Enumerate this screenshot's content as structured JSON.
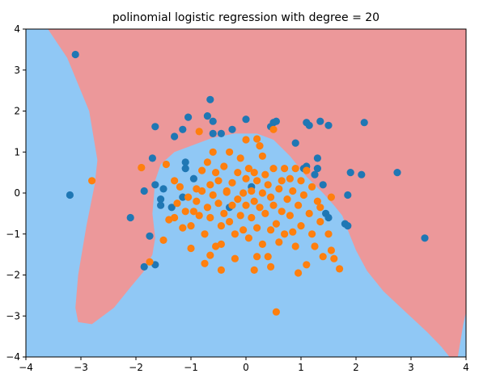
{
  "chart_data": {
    "type": "scatter",
    "title": "polinomial logistic regression with degree = 20",
    "xlabel": "",
    "ylabel": "",
    "xlim": [
      -4,
      4
    ],
    "ylim": [
      -4,
      4
    ],
    "xticks": [
      "−4",
      "−3",
      "−2",
      "−1",
      "0",
      "1",
      "2",
      "3",
      "4"
    ],
    "yticks": [
      "−4",
      "−3",
      "−2",
      "−1",
      "0",
      "1",
      "2",
      "3",
      "4"
    ],
    "grid": false,
    "legend": "none",
    "colors": {
      "class_0_region": "#ec989a",
      "class_1_region": "#90c8f5",
      "class_0_points": "#1f77b4",
      "class_1_points": "#ff7f0e"
    },
    "regions": {
      "class_1_left": [
        [
          -4,
          4
        ],
        [
          -3.6,
          4
        ],
        [
          -3.25,
          3.3
        ],
        [
          -2.85,
          2.0
        ],
        [
          -2.7,
          0.8
        ],
        [
          -2.75,
          0.2
        ],
        [
          -2.9,
          -0.8
        ],
        [
          -3.05,
          -2.0
        ],
        [
          -3.1,
          -2.8
        ],
        [
          -3.05,
          -3.15
        ],
        [
          -2.8,
          -3.2
        ],
        [
          -2.4,
          -2.8
        ],
        [
          -2.1,
          -2.3
        ],
        [
          -1.85,
          -1.9
        ],
        [
          -1.7,
          -1.5
        ],
        [
          -1.65,
          -1.1
        ],
        [
          -1.7,
          -0.5
        ],
        [
          -1.65,
          0.3
        ],
        [
          -1.55,
          0.7
        ],
        [
          -1.3,
          1.0
        ],
        [
          -1.0,
          1.15
        ],
        [
          -0.6,
          1.35
        ],
        [
          -0.2,
          1.45
        ],
        [
          0.2,
          1.45
        ],
        [
          0.5,
          1.3
        ],
        [
          0.8,
          0.9
        ],
        [
          1.1,
          0.4
        ],
        [
          1.4,
          0.0
        ],
        [
          1.6,
          -0.3
        ],
        [
          1.75,
          -0.55
        ],
        [
          1.85,
          -0.9
        ],
        [
          2.0,
          -1.4
        ],
        [
          2.2,
          -1.9
        ],
        [
          2.5,
          -2.4
        ],
        [
          2.9,
          -2.9
        ],
        [
          3.3,
          -3.4
        ],
        [
          3.55,
          -3.75
        ],
        [
          3.7,
          -4
        ],
        [
          -4,
          -4
        ]
      ],
      "class_1_right": [
        [
          3.85,
          -4
        ],
        [
          3.95,
          -3.2
        ],
        [
          4,
          -2.9
        ],
        [
          4,
          -4
        ]
      ]
    },
    "series": [
      {
        "name": "",
        "color": "#1f77b4",
        "points": [
          [
            -3.1,
            3.38
          ],
          [
            -3.2,
            -0.05
          ],
          [
            -2.1,
            -0.6
          ],
          [
            -1.75,
            -1.05
          ],
          [
            -1.85,
            -1.8
          ],
          [
            -1.65,
            -1.75
          ],
          [
            -1.7,
            0.85
          ],
          [
            -1.65,
            1.62
          ],
          [
            -1.85,
            0.05
          ],
          [
            -1.65,
            0.2
          ],
          [
            -1.55,
            -0.15
          ],
          [
            -1.55,
            -0.3
          ],
          [
            -1.5,
            0.1
          ],
          [
            -1.35,
            -0.35
          ],
          [
            -1.3,
            1.38
          ],
          [
            -1.15,
            1.55
          ],
          [
            -1.1,
            0.75
          ],
          [
            -1.1,
            0.6
          ],
          [
            -1.05,
            1.85
          ],
          [
            -1.15,
            -0.1
          ],
          [
            -0.95,
            0.35
          ],
          [
            -0.65,
            2.28
          ],
          [
            -0.7,
            1.88
          ],
          [
            -0.6,
            1.75
          ],
          [
            -0.6,
            1.45
          ],
          [
            -0.45,
            1.45
          ],
          [
            -0.25,
            1.55
          ],
          [
            0.1,
            0.15
          ],
          [
            0.0,
            1.8
          ],
          [
            0.5,
            1.72
          ],
          [
            0.45,
            1.62
          ],
          [
            0.55,
            1.75
          ],
          [
            0.9,
            1.22
          ],
          [
            1.05,
            0.6
          ],
          [
            1.1,
            0.65
          ],
          [
            1.1,
            1.72
          ],
          [
            1.15,
            1.65
          ],
          [
            1.3,
            0.85
          ],
          [
            1.3,
            0.6
          ],
          [
            1.35,
            1.75
          ],
          [
            1.5,
            1.65
          ],
          [
            1.25,
            0.45
          ],
          [
            1.4,
            0.2
          ],
          [
            1.45,
            -0.5
          ],
          [
            1.5,
            -0.6
          ],
          [
            1.8,
            -0.75
          ],
          [
            1.85,
            -0.8
          ],
          [
            1.85,
            -0.05
          ],
          [
            1.9,
            0.5
          ],
          [
            2.1,
            0.45
          ],
          [
            2.15,
            1.72
          ],
          [
            2.75,
            0.5
          ],
          [
            3.25,
            -1.1
          ],
          [
            -0.3,
            -0.35
          ]
        ]
      },
      {
        "name": "",
        "color": "#ff7f0e",
        "points": [
          [
            -2.8,
            0.3
          ],
          [
            -1.9,
            0.62
          ],
          [
            -1.75,
            -1.68
          ],
          [
            -1.5,
            -1.15
          ],
          [
            -1.45,
            0.7
          ],
          [
            -1.4,
            -0.65
          ],
          [
            -1.3,
            -0.6
          ],
          [
            -1.3,
            0.3
          ],
          [
            -1.25,
            -0.25
          ],
          [
            -1.2,
            0.15
          ],
          [
            -1.15,
            -0.85
          ],
          [
            -1.1,
            -0.45
          ],
          [
            -1.05,
            -0.1
          ],
          [
            -1.0,
            -0.8
          ],
          [
            -1.0,
            -1.35
          ],
          [
            -0.95,
            -0.45
          ],
          [
            -0.9,
            0.1
          ],
          [
            -0.9,
            -0.2
          ],
          [
            -0.85,
            -0.55
          ],
          [
            -0.8,
            0.55
          ],
          [
            -0.8,
            0.05
          ],
          [
            -0.75,
            -1.0
          ],
          [
            -0.75,
            -1.72
          ],
          [
            -0.7,
            -0.35
          ],
          [
            -0.7,
            0.75
          ],
          [
            -0.65,
            0.2
          ],
          [
            -0.65,
            -0.6
          ],
          [
            -0.6,
            -0.05
          ],
          [
            -0.6,
            1.0
          ],
          [
            -0.55,
            0.5
          ],
          [
            -0.55,
            -1.3
          ],
          [
            -0.5,
            -0.25
          ],
          [
            -0.5,
            0.3
          ],
          [
            -0.45,
            -0.8
          ],
          [
            -0.45,
            -1.25
          ],
          [
            -0.4,
            0.65
          ],
          [
            -0.4,
            -0.5
          ],
          [
            -0.35,
            0.05
          ],
          [
            -0.3,
            -0.7
          ],
          [
            -0.3,
            1.0
          ],
          [
            -0.25,
            -0.3
          ],
          [
            -0.25,
            0.25
          ],
          [
            -0.2,
            -1.0
          ],
          [
            -0.2,
            -1.6
          ],
          [
            -0.15,
            0.5
          ],
          [
            -0.15,
            -0.15
          ],
          [
            -0.1,
            -0.55
          ],
          [
            -0.1,
            0.85
          ],
          [
            -0.05,
            0.0
          ],
          [
            -0.05,
            -0.9
          ],
          [
            0.0,
            0.35
          ],
          [
            0.0,
            -0.3
          ],
          [
            0.0,
            1.3
          ],
          [
            0.05,
            -1.1
          ],
          [
            0.05,
            0.6
          ],
          [
            0.1,
            -0.6
          ],
          [
            0.1,
            0.05
          ],
          [
            0.15,
            -0.2
          ],
          [
            0.15,
            0.5
          ],
          [
            0.2,
            -1.55
          ],
          [
            0.2,
            -0.85
          ],
          [
            0.2,
            0.3
          ],
          [
            0.25,
            1.15
          ],
          [
            0.25,
            -0.35
          ],
          [
            0.3,
            0.0
          ],
          [
            0.3,
            -1.25
          ],
          [
            0.3,
            0.9
          ],
          [
            0.35,
            -0.5
          ],
          [
            0.35,
            0.45
          ],
          [
            0.4,
            -1.55
          ],
          [
            0.4,
            0.2
          ],
          [
            0.45,
            -0.9
          ],
          [
            0.45,
            -0.1
          ],
          [
            0.5,
            0.6
          ],
          [
            0.5,
            -0.3
          ],
          [
            0.5,
            1.55
          ],
          [
            0.55,
            -2.9
          ],
          [
            0.55,
            -0.75
          ],
          [
            0.6,
            0.1
          ],
          [
            0.6,
            -1.2
          ],
          [
            0.65,
            -0.45
          ],
          [
            0.65,
            0.3
          ],
          [
            0.7,
            -1.0
          ],
          [
            0.7,
            0.6
          ],
          [
            0.75,
            -0.15
          ],
          [
            0.8,
            0.35
          ],
          [
            0.8,
            -0.55
          ],
          [
            0.85,
            -0.95
          ],
          [
            0.85,
            0.05
          ],
          [
            0.9,
            -1.3
          ],
          [
            0.9,
            0.6
          ],
          [
            0.95,
            -0.3
          ],
          [
            0.95,
            -1.95
          ],
          [
            1.0,
            0.3
          ],
          [
            1.0,
            -0.8
          ],
          [
            1.05,
            -0.05
          ],
          [
            1.1,
            -1.75
          ],
          [
            1.1,
            0.55
          ],
          [
            1.15,
            -0.5
          ],
          [
            1.2,
            -1.0
          ],
          [
            1.2,
            0.15
          ],
          [
            1.25,
            -1.3
          ],
          [
            1.3,
            -0.2
          ],
          [
            1.35,
            -0.7
          ],
          [
            1.4,
            -1.55
          ],
          [
            1.5,
            -1.0
          ],
          [
            1.55,
            -1.4
          ],
          [
            1.55,
            -0.1
          ],
          [
            1.6,
            -1.6
          ],
          [
            1.7,
            -1.85
          ],
          [
            -0.65,
            -1.52
          ],
          [
            -0.45,
            -1.88
          ],
          [
            0.15,
            -1.88
          ],
          [
            0.2,
            1.32
          ],
          [
            -0.85,
            1.5
          ],
          [
            -0.35,
            0.02
          ],
          [
            0.45,
            -1.8
          ],
          [
            1.35,
            -0.35
          ]
        ]
      }
    ]
  }
}
